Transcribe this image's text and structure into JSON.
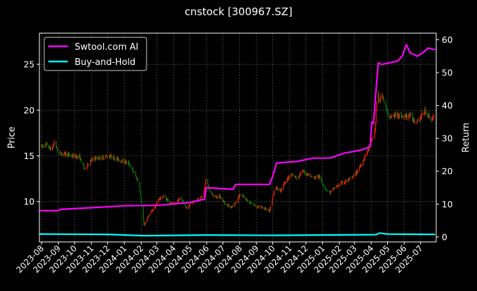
{
  "chart_data": {
    "type": "line",
    "title": "cnstock [300967.SZ]",
    "ylabel_left": "Price",
    "ylabel_right": "Return",
    "ylim_left": [
      5.6,
      28.4
    ],
    "ylim_right": [
      -1.5,
      62
    ],
    "yticks_left": [
      10,
      15,
      20,
      25
    ],
    "yticks_right": [
      0,
      10,
      20,
      30,
      40,
      50,
      60
    ],
    "x_range": [
      "2023-07-28",
      "2025-07-30"
    ],
    "x_ticks": [
      "2023-08",
      "2023-09",
      "2023-10",
      "2023-11",
      "2023-12",
      "2024-01",
      "2024-02",
      "2024-03",
      "2024-04",
      "2024-05",
      "2024-06",
      "2024-07",
      "2024-08",
      "2024-09",
      "2024-10",
      "2024-11",
      "2024-12",
      "2025-01",
      "2025-02",
      "2025-03",
      "2025-04",
      "2025-05",
      "2025-06",
      "2025-07"
    ],
    "grid": true,
    "legend_position": "top-left",
    "colors": {
      "up": "#ff2000",
      "down": "#008000",
      "ai": "#ff00ff",
      "hold": "#00ffff",
      "grid": "#666666"
    },
    "price": {
      "type": "candlestick",
      "points": [
        [
          "2023-08-01",
          16.0
        ],
        [
          "2023-08-10",
          16.2
        ],
        [
          "2023-08-20",
          15.6
        ],
        [
          "2023-08-25",
          16.6
        ],
        [
          "2023-09-01",
          15.3
        ],
        [
          "2023-09-15",
          15.2
        ],
        [
          "2023-09-25",
          15.0
        ],
        [
          "2023-10-10",
          14.9
        ],
        [
          "2023-10-20",
          13.5
        ],
        [
          "2023-10-25",
          14.1
        ],
        [
          "2023-11-05",
          14.7
        ],
        [
          "2023-11-20",
          14.8
        ],
        [
          "2023-12-01",
          15.0
        ],
        [
          "2023-12-10",
          14.9
        ],
        [
          "2023-12-20",
          14.6
        ],
        [
          "2024-01-01",
          14.4
        ],
        [
          "2024-01-10",
          14.1
        ],
        [
          "2024-01-20",
          13.0
        ],
        [
          "2024-01-28",
          12.0
        ],
        [
          "2024-02-02",
          9.5
        ],
        [
          "2024-02-06",
          7.4
        ],
        [
          "2024-02-15",
          8.5
        ],
        [
          "2024-02-25",
          9.3
        ],
        [
          "2024-03-05",
          10.3
        ],
        [
          "2024-03-15",
          10.6
        ],
        [
          "2024-03-25",
          9.8
        ],
        [
          "2024-04-05",
          9.9
        ],
        [
          "2024-04-15",
          10.3
        ],
        [
          "2024-04-25",
          9.3
        ],
        [
          "2024-05-05",
          10.0
        ],
        [
          "2024-05-15",
          10.2
        ],
        [
          "2024-05-25",
          10.6
        ],
        [
          "2024-06-01",
          12.8
        ],
        [
          "2024-06-05",
          11.3
        ],
        [
          "2024-06-15",
          10.5
        ],
        [
          "2024-06-25",
          10.6
        ],
        [
          "2024-07-05",
          9.8
        ],
        [
          "2024-07-15",
          9.4
        ],
        [
          "2024-07-25",
          9.9
        ],
        [
          "2024-08-01",
          10.8
        ],
        [
          "2024-08-10",
          10.4
        ],
        [
          "2024-08-20",
          9.9
        ],
        [
          "2024-09-01",
          9.5
        ],
        [
          "2024-09-15",
          9.3
        ],
        [
          "2024-09-25",
          8.9
        ],
        [
          "2024-10-01",
          10.5
        ],
        [
          "2024-10-05",
          11.6
        ],
        [
          "2024-10-15",
          11.2
        ],
        [
          "2024-10-25",
          12.3
        ],
        [
          "2024-11-05",
          12.9
        ],
        [
          "2024-11-15",
          12.6
        ],
        [
          "2024-11-25",
          13.3
        ],
        [
          "2024-12-05",
          13.0
        ],
        [
          "2024-12-15",
          12.6
        ],
        [
          "2024-12-25",
          12.8
        ],
        [
          "2025-01-05",
          11.5
        ],
        [
          "2025-01-15",
          11.0
        ],
        [
          "2025-01-25",
          11.6
        ],
        [
          "2025-02-05",
          12.0
        ],
        [
          "2025-02-15",
          12.3
        ],
        [
          "2025-02-25",
          12.6
        ],
        [
          "2025-03-05",
          13.2
        ],
        [
          "2025-03-15",
          14.3
        ],
        [
          "2025-03-25",
          15.5
        ],
        [
          "2025-04-01",
          16.5
        ],
        [
          "2025-04-08",
          17.8
        ],
        [
          "2025-04-12",
          22.0
        ],
        [
          "2025-04-16",
          21.0
        ],
        [
          "2025-04-22",
          21.7
        ],
        [
          "2025-05-01",
          19.5
        ],
        [
          "2025-05-10",
          19.2
        ],
        [
          "2025-05-20",
          19.6
        ],
        [
          "2025-06-01",
          19.2
        ],
        [
          "2025-06-10",
          19.5
        ],
        [
          "2025-06-20",
          18.8
        ],
        [
          "2025-07-01",
          19.2
        ],
        [
          "2025-07-10",
          19.9
        ],
        [
          "2025-07-20",
          19.0
        ],
        [
          "2025-07-25",
          19.2
        ]
      ]
    },
    "series": [
      {
        "name": "Swtool.com AI",
        "axis": "right",
        "points": [
          [
            "2023-07-28",
            8.0
          ],
          [
            "2023-09-01",
            8.0
          ],
          [
            "2023-09-05",
            8.4
          ],
          [
            "2023-11-01",
            8.9
          ],
          [
            "2024-01-01",
            9.5
          ],
          [
            "2024-03-01",
            9.6
          ],
          [
            "2024-05-01",
            10.5
          ],
          [
            "2024-05-28",
            11.5
          ],
          [
            "2024-05-31",
            15.0
          ],
          [
            "2024-07-20",
            14.5
          ],
          [
            "2024-07-24",
            16.0
          ],
          [
            "2024-09-25",
            16.0
          ],
          [
            "2024-09-30",
            18.0
          ],
          [
            "2024-10-08",
            22.5
          ],
          [
            "2024-11-15",
            23.0
          ],
          [
            "2024-12-15",
            24.0
          ],
          [
            "2025-01-15",
            24.0
          ],
          [
            "2025-02-10",
            25.5
          ],
          [
            "2025-03-15",
            26.5
          ],
          [
            "2025-03-30",
            27.5
          ],
          [
            "2025-04-02",
            35.0
          ],
          [
            "2025-04-05",
            34.5
          ],
          [
            "2025-04-10",
            45.0
          ],
          [
            "2025-04-14",
            53.0
          ],
          [
            "2025-04-20",
            52.5
          ],
          [
            "2025-05-05",
            53.0
          ],
          [
            "2025-05-20",
            53.5
          ],
          [
            "2025-05-28",
            55.0
          ],
          [
            "2025-06-05",
            58.5
          ],
          [
            "2025-06-12",
            56.0
          ],
          [
            "2025-06-25",
            55.0
          ],
          [
            "2025-07-05",
            56.0
          ],
          [
            "2025-07-15",
            57.5
          ],
          [
            "2025-07-28",
            57.0
          ]
        ]
      },
      {
        "name": "Buy-and-Hold",
        "axis": "right",
        "points": [
          [
            "2023-07-28",
            0.9
          ],
          [
            "2023-12-01",
            0.8
          ],
          [
            "2024-02-06",
            0.4
          ],
          [
            "2024-06-01",
            0.6
          ],
          [
            "2024-10-01",
            0.5
          ],
          [
            "2025-01-01",
            0.6
          ],
          [
            "2025-04-10",
            0.7
          ],
          [
            "2025-04-16",
            1.2
          ],
          [
            "2025-05-01",
            0.9
          ],
          [
            "2025-07-28",
            0.8
          ]
        ]
      }
    ]
  }
}
